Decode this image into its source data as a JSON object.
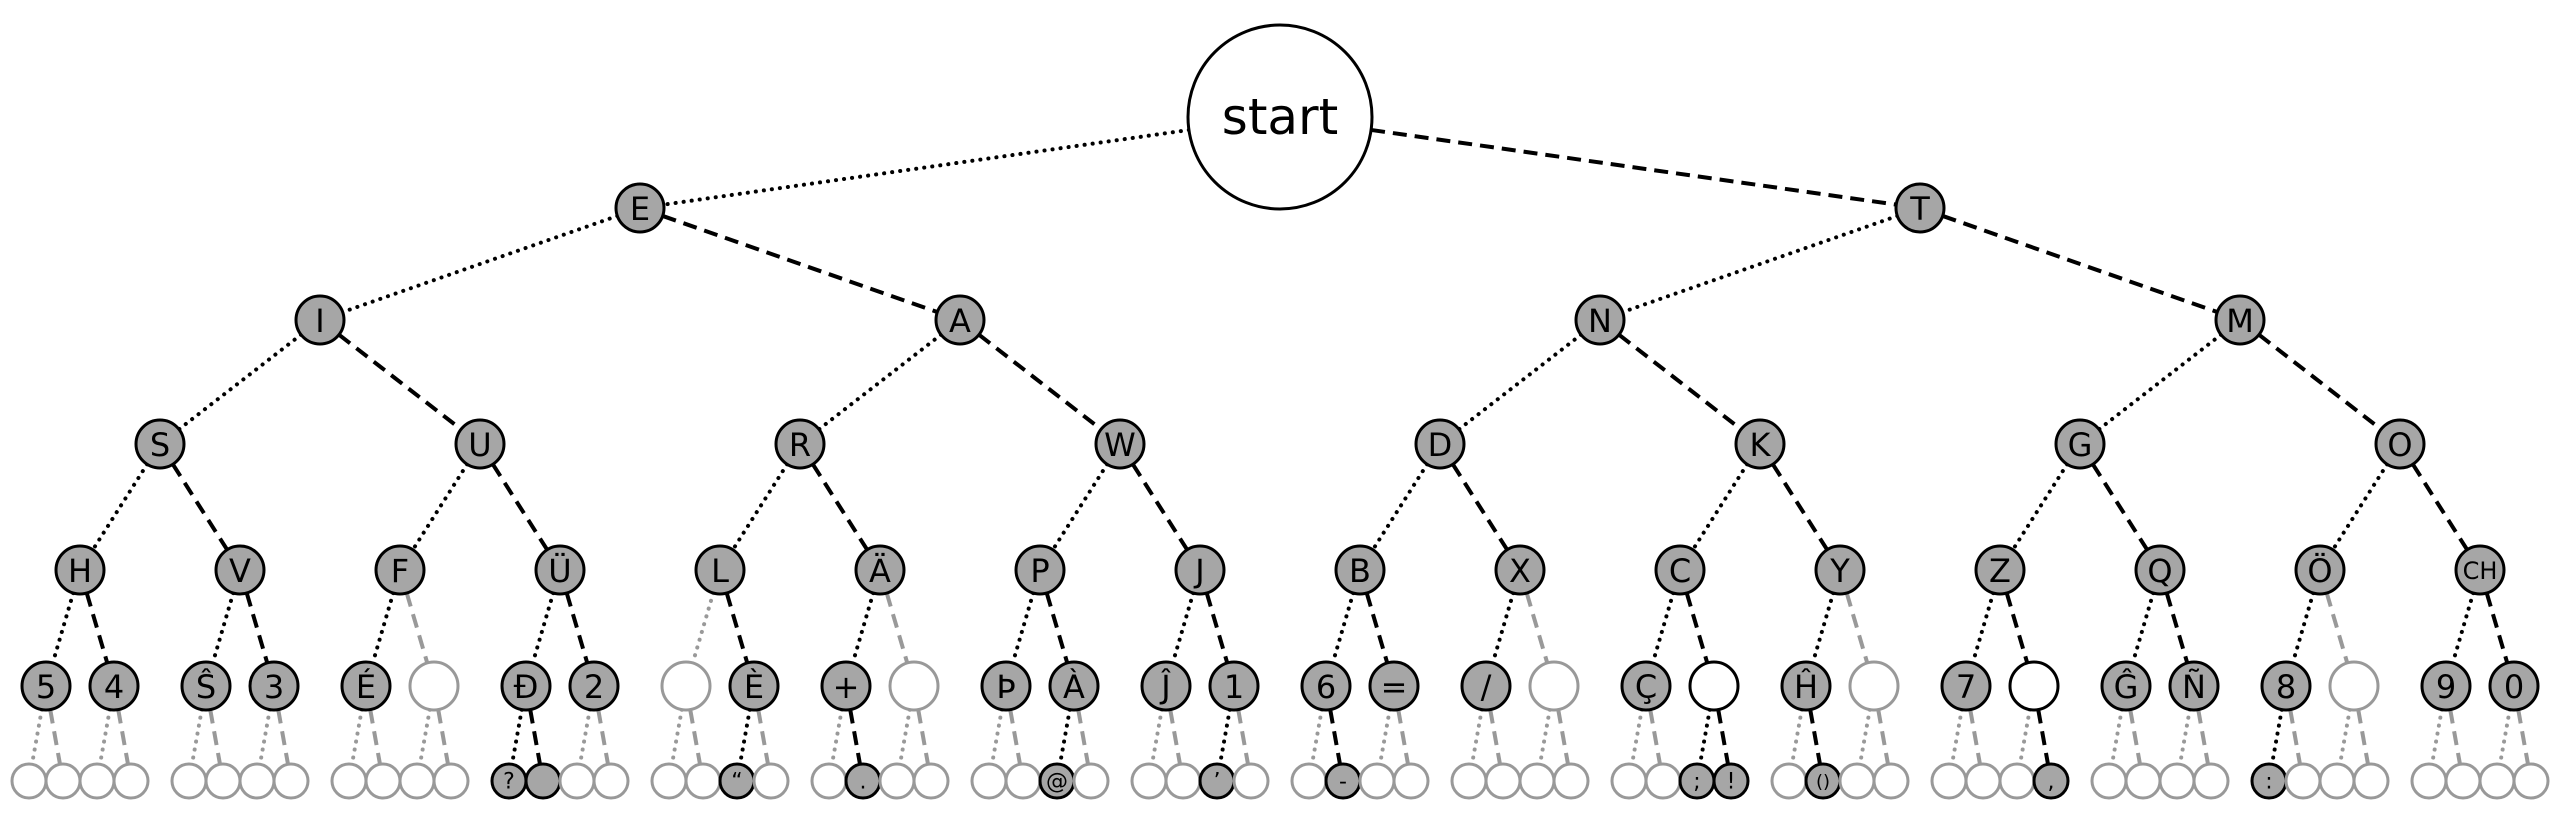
{
  "root": {
    "label": "start"
  },
  "colors": {
    "char_fill": "#a6a6a6",
    "line": "#000000",
    "unused": "#999999",
    "blank_fill": "#ffffff"
  },
  "edge_styles": {
    "dit": "dotted",
    "dah": "dashed"
  },
  "levels": [
    [
      [
        "E",
        "char"
      ],
      [
        "T",
        "char"
      ]
    ],
    [
      [
        "I",
        "char"
      ],
      [
        "A",
        "char"
      ],
      [
        "N",
        "char"
      ],
      [
        "M",
        "char"
      ]
    ],
    [
      [
        "S",
        "char"
      ],
      [
        "U",
        "char"
      ],
      [
        "R",
        "char"
      ],
      [
        "W",
        "char"
      ],
      [
        "D",
        "char"
      ],
      [
        "K",
        "char"
      ],
      [
        "G",
        "char"
      ],
      [
        "O",
        "char"
      ]
    ],
    [
      [
        "H",
        "char"
      ],
      [
        "V",
        "char"
      ],
      [
        "F",
        "char"
      ],
      [
        "Ü",
        "char"
      ],
      [
        "L",
        "char"
      ],
      [
        "Ä",
        "char"
      ],
      [
        "P",
        "char"
      ],
      [
        "J",
        "char"
      ],
      [
        "B",
        "char"
      ],
      [
        "X",
        "char"
      ],
      [
        "C",
        "char"
      ],
      [
        "Y",
        "char"
      ],
      [
        "Z",
        "char"
      ],
      [
        "Q",
        "char"
      ],
      [
        "Ö",
        "char"
      ],
      [
        "CH",
        "char"
      ]
    ],
    [
      [
        "5",
        "char"
      ],
      [
        "4",
        "char"
      ],
      [
        "Ŝ",
        "char"
      ],
      [
        "3",
        "char"
      ],
      [
        "É",
        "char"
      ],
      [
        "",
        "empty"
      ],
      [
        "Đ",
        "char"
      ],
      [
        "2",
        "char"
      ],
      [
        "",
        "empty"
      ],
      [
        "È",
        "char"
      ],
      [
        "+",
        "char"
      ],
      [
        "",
        "empty"
      ],
      [
        "Þ",
        "char"
      ],
      [
        "À",
        "char"
      ],
      [
        "Ĵ",
        "char"
      ],
      [
        "1",
        "char"
      ],
      [
        "6",
        "char"
      ],
      [
        "=",
        "char"
      ],
      [
        "/",
        "char"
      ],
      [
        "",
        "empty"
      ],
      [
        "Ç",
        "char"
      ],
      [
        "",
        "path"
      ],
      [
        "Ĥ",
        "char"
      ],
      [
        "",
        "empty"
      ],
      [
        "7",
        "char"
      ],
      [
        "",
        "path"
      ],
      [
        "Ĝ",
        "char"
      ],
      [
        "Ñ",
        "char"
      ],
      [
        "8",
        "char"
      ],
      [
        "",
        "empty"
      ],
      [
        "9",
        "char"
      ],
      [
        "0",
        "char"
      ]
    ],
    [
      [
        "",
        "empty"
      ],
      [
        "",
        "empty"
      ],
      [
        "",
        "empty"
      ],
      [
        "",
        "empty"
      ],
      [
        "",
        "empty"
      ],
      [
        "",
        "empty"
      ],
      [
        "",
        "empty"
      ],
      [
        "",
        "empty"
      ],
      [
        "",
        "empty"
      ],
      [
        "",
        "empty"
      ],
      [
        "",
        "empty"
      ],
      [
        "",
        "empty"
      ],
      [
        "?",
        "char"
      ],
      [
        "",
        "char"
      ],
      [
        "",
        "empty"
      ],
      [
        "",
        "empty"
      ],
      [
        "",
        "empty"
      ],
      [
        "",
        "empty"
      ],
      [
        "“",
        "char"
      ],
      [
        "",
        "empty"
      ],
      [
        "",
        "empty"
      ],
      [
        ".",
        "char"
      ],
      [
        "",
        "empty"
      ],
      [
        "",
        "empty"
      ],
      [
        "",
        "empty"
      ],
      [
        "",
        "empty"
      ],
      [
        "@",
        "char"
      ],
      [
        "",
        "empty"
      ],
      [
        "",
        "empty"
      ],
      [
        "",
        "empty"
      ],
      [
        "’",
        "char"
      ],
      [
        "",
        "empty"
      ],
      [
        "",
        "empty"
      ],
      [
        "-",
        "char"
      ],
      [
        "",
        "empty"
      ],
      [
        "",
        "empty"
      ],
      [
        "",
        "empty"
      ],
      [
        "",
        "empty"
      ],
      [
        "",
        "empty"
      ],
      [
        "",
        "empty"
      ],
      [
        "",
        "empty"
      ],
      [
        "",
        "empty"
      ],
      [
        ";",
        "char"
      ],
      [
        "!",
        "char"
      ],
      [
        "",
        "empty"
      ],
      [
        "()",
        "char"
      ],
      [
        "",
        "empty"
      ],
      [
        "",
        "empty"
      ],
      [
        "",
        "empty"
      ],
      [
        "",
        "empty"
      ],
      [
        "",
        "empty"
      ],
      [
        ",",
        "char"
      ],
      [
        "",
        "empty"
      ],
      [
        "",
        "empty"
      ],
      [
        "",
        "empty"
      ],
      [
        "",
        "empty"
      ],
      [
        ":",
        "char"
      ],
      [
        "",
        "empty"
      ],
      [
        "",
        "empty"
      ],
      [
        "",
        "empty"
      ],
      [
        "",
        "empty"
      ],
      [
        "",
        "empty"
      ],
      [
        "",
        "empty"
      ],
      [
        "",
        "empty"
      ]
    ]
  ]
}
